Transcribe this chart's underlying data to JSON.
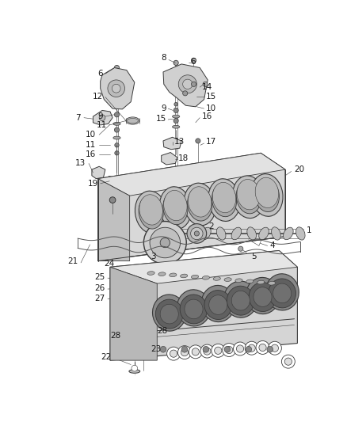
{
  "bg_color": "#ffffff",
  "line_color": "#3a3a3a",
  "label_color": "#1a1a1a",
  "fig_width": 4.38,
  "fig_height": 5.33,
  "dpi": 100,
  "label_fs": 7.5,
  "thin_lw": 0.5,
  "med_lw": 0.8,
  "thick_lw": 1.2,
  "part_fc": "#e0e0e0",
  "part_fc2": "#c8c8c8",
  "part_fc3": "#b0b0b0",
  "shadow_fc": "#909090"
}
